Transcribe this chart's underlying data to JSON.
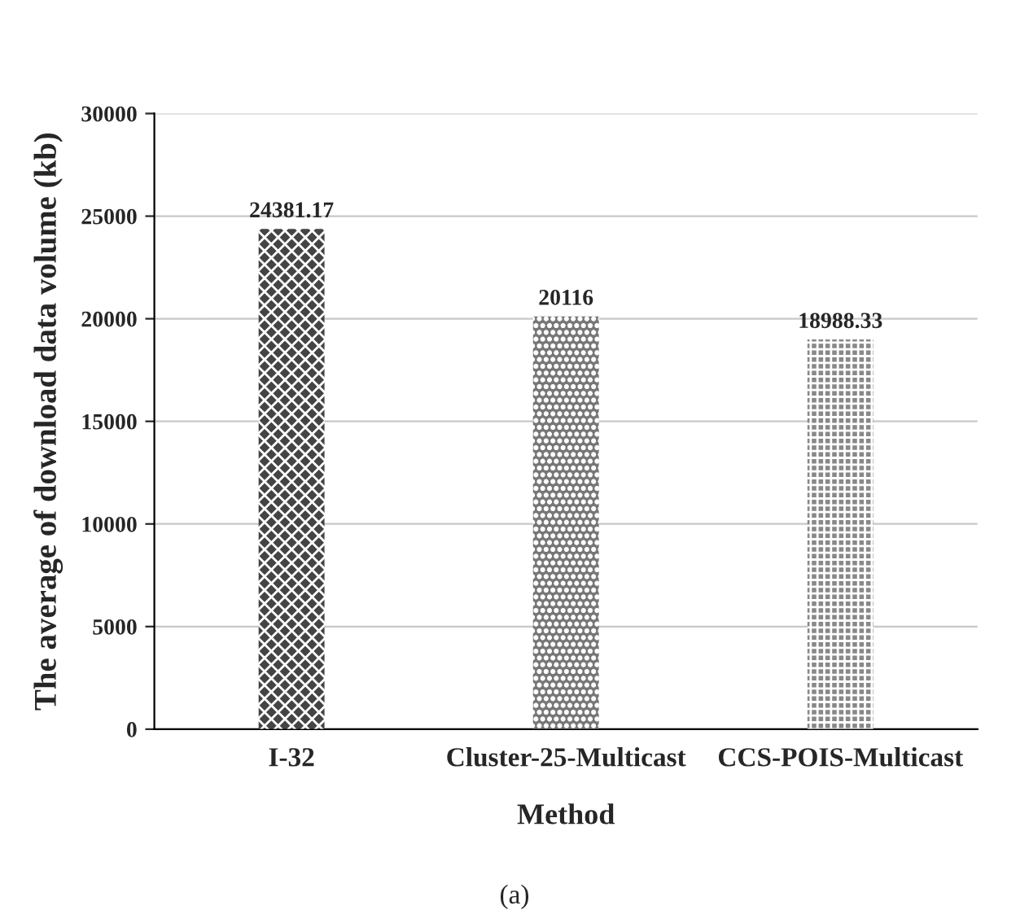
{
  "chart_data": {
    "type": "bar",
    "categories": [
      "I-32",
      "Cluster-25-Multicast",
      "CCS-POIS-Multicast"
    ],
    "values": [
      24381.17,
      20116,
      18988.33
    ],
    "colors": [
      "#444444",
      "#777777",
      "#888888"
    ],
    "xlabel": "Method",
    "ylabel": "The average of download data volume (kb)",
    "ylim": [
      0,
      30000
    ],
    "yticks": [
      0,
      5000,
      10000,
      15000,
      20000,
      25000,
      30000
    ],
    "grid": "y",
    "data_labels": true,
    "annotations": [
      "(a)"
    ]
  }
}
